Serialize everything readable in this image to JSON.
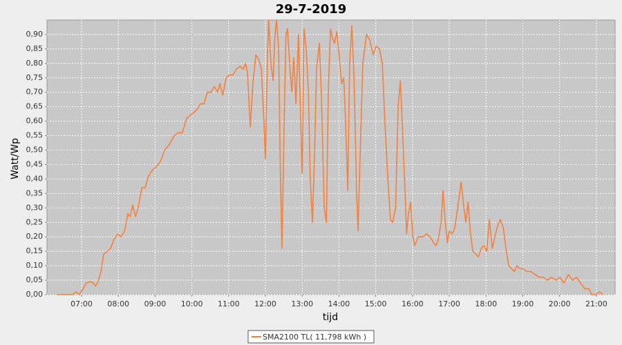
{
  "chart_data": {
    "type": "line",
    "title": "29-7-2019",
    "x_label": "tijd",
    "y_label": "Watt/Wp",
    "xlim": [
      6.06,
      21.51
    ],
    "ylim": [
      0,
      0.95
    ],
    "xticks": [
      {
        "value": 7,
        "label": "07:00"
      },
      {
        "value": 8,
        "label": "08:00"
      },
      {
        "value": 9,
        "label": "09:00"
      },
      {
        "value": 10,
        "label": "10:00"
      },
      {
        "value": 11,
        "label": "11:00"
      },
      {
        "value": 12,
        "label": "12:00"
      },
      {
        "value": 13,
        "label": "13:00"
      },
      {
        "value": 14,
        "label": "14:00"
      },
      {
        "value": 15,
        "label": "15:00"
      },
      {
        "value": 16,
        "label": "16:00"
      },
      {
        "value": 17,
        "label": "17:00"
      },
      {
        "value": 18,
        "label": "18:00"
      },
      {
        "value": 19,
        "label": "19:00"
      },
      {
        "value": 20,
        "label": "20:00"
      },
      {
        "value": 21,
        "label": "21:00"
      }
    ],
    "yticks": [
      {
        "value": 0,
        "label": "0,00"
      },
      {
        "value": 0.05,
        "label": "0,05"
      },
      {
        "value": 0.1,
        "label": "0,10"
      },
      {
        "value": 0.15,
        "label": "0,15"
      },
      {
        "value": 0.2,
        "label": "0,20"
      },
      {
        "value": 0.25,
        "label": "0,25"
      },
      {
        "value": 0.3,
        "label": "0,30"
      },
      {
        "value": 0.35,
        "label": "0,35"
      },
      {
        "value": 0.4,
        "label": "0,40"
      },
      {
        "value": 0.45,
        "label": "0,45"
      },
      {
        "value": 0.5,
        "label": "0,50"
      },
      {
        "value": 0.55,
        "label": "0,55"
      },
      {
        "value": 0.6,
        "label": "0,60"
      },
      {
        "value": 0.65,
        "label": "0,65"
      },
      {
        "value": 0.7,
        "label": "0,70"
      },
      {
        "value": 0.75,
        "label": "0,75"
      },
      {
        "value": 0.8,
        "label": "0,80"
      },
      {
        "value": 0.85,
        "label": "0,85"
      },
      {
        "value": 0.9,
        "label": "0,90"
      }
    ],
    "grid": true,
    "x": [
      6.32,
      6.76,
      6.85,
      6.94,
      7.04,
      7.13,
      7.23,
      7.32,
      7.38,
      7.45,
      7.53,
      7.6,
      7.7,
      7.79,
      7.88,
      7.98,
      8.07,
      8.17,
      8.26,
      8.32,
      8.39,
      8.47,
      8.54,
      8.64,
      8.73,
      8.82,
      8.92,
      9.01,
      9.14,
      9.26,
      9.39,
      9.52,
      9.63,
      9.74,
      9.86,
      9.95,
      10.05,
      10.14,
      10.23,
      10.33,
      10.42,
      10.52,
      10.61,
      10.7,
      10.76,
      10.84,
      10.93,
      11.02,
      11.12,
      11.21,
      11.31,
      11.4,
      11.46,
      11.51,
      11.59,
      11.66,
      11.74,
      11.83,
      11.89,
      11.96,
      12.0,
      12.06,
      12.09,
      12.15,
      12.21,
      12.26,
      12.3,
      12.36,
      12.41,
      12.45,
      12.51,
      12.56,
      12.6,
      12.66,
      12.72,
      12.77,
      12.83,
      12.9,
      12.94,
      13.0,
      13.05,
      13.11,
      13.17,
      13.22,
      13.28,
      13.34,
      13.39,
      13.47,
      13.52,
      13.6,
      13.66,
      13.71,
      13.77,
      13.82,
      13.88,
      13.94,
      13.99,
      14.07,
      14.13,
      14.18,
      14.24,
      14.29,
      14.35,
      14.41,
      14.48,
      14.52,
      14.58,
      14.65,
      14.75,
      14.84,
      14.93,
      15.01,
      15.1,
      15.18,
      15.25,
      15.33,
      15.4,
      15.46,
      15.54,
      15.61,
      15.67,
      15.72,
      15.8,
      15.84,
      15.89,
      15.95,
      16.01,
      16.06,
      16.16,
      16.29,
      16.38,
      16.48,
      16.57,
      16.64,
      16.7,
      16.78,
      16.83,
      16.89,
      16.95,
      17.0,
      17.08,
      17.15,
      17.25,
      17.32,
      17.4,
      17.45,
      17.51,
      17.57,
      17.64,
      17.72,
      17.79,
      17.87,
      17.94,
      18.02,
      18.09,
      18.17,
      18.24,
      18.32,
      18.39,
      18.47,
      18.54,
      18.62,
      18.69,
      18.77,
      18.84,
      18.92,
      18.99,
      19.11,
      19.22,
      19.33,
      19.45,
      19.56,
      19.67,
      19.78,
      19.9,
      20.01,
      20.12,
      20.24,
      20.35,
      20.46,
      20.57,
      20.69,
      20.8,
      20.87,
      20.99,
      21.08,
      21.18
    ],
    "series": [
      {
        "name": "SMA2100 TL( 11,798 kWh )",
        "color": "#f5803e",
        "values": [
          0,
          0,
          0.01,
          0,
          0.02,
          0.04,
          0.045,
          0.04,
          0.03,
          0.045,
          0.08,
          0.14,
          0.15,
          0.16,
          0.19,
          0.21,
          0.2,
          0.22,
          0.28,
          0.27,
          0.31,
          0.27,
          0.3,
          0.37,
          0.37,
          0.41,
          0.43,
          0.44,
          0.46,
          0.5,
          0.52,
          0.55,
          0.56,
          0.56,
          0.61,
          0.62,
          0.63,
          0.64,
          0.66,
          0.66,
          0.7,
          0.7,
          0.72,
          0.7,
          0.73,
          0.69,
          0.75,
          0.76,
          0.76,
          0.78,
          0.79,
          0.78,
          0.8,
          0.77,
          0.58,
          0.73,
          0.83,
          0.81,
          0.78,
          0.6,
          0.47,
          0.85,
          0.95,
          0.8,
          0.74,
          0.9,
          0.95,
          0.85,
          0.4,
          0.16,
          0.6,
          0.9,
          0.92,
          0.8,
          0.7,
          0.82,
          0.66,
          0.9,
          0.7,
          0.42,
          0.92,
          0.85,
          0.7,
          0.4,
          0.25,
          0.5,
          0.78,
          0.87,
          0.7,
          0.3,
          0.25,
          0.7,
          0.92,
          0.89,
          0.87,
          0.91,
          0.85,
          0.73,
          0.75,
          0.6,
          0.36,
          0.8,
          0.93,
          0.75,
          0.35,
          0.22,
          0.5,
          0.8,
          0.9,
          0.88,
          0.83,
          0.86,
          0.85,
          0.8,
          0.6,
          0.4,
          0.26,
          0.25,
          0.3,
          0.65,
          0.74,
          0.6,
          0.35,
          0.21,
          0.28,
          0.32,
          0.2,
          0.17,
          0.2,
          0.2,
          0.21,
          0.2,
          0.18,
          0.17,
          0.19,
          0.25,
          0.36,
          0.25,
          0.18,
          0.22,
          0.21,
          0.23,
          0.32,
          0.39,
          0.3,
          0.25,
          0.32,
          0.22,
          0.15,
          0.14,
          0.13,
          0.16,
          0.17,
          0.15,
          0.26,
          0.16,
          0.2,
          0.24,
          0.26,
          0.23,
          0.16,
          0.1,
          0.09,
          0.08,
          0.1,
          0.09,
          0.09,
          0.08,
          0.08,
          0.07,
          0.06,
          0.06,
          0.05,
          0.06,
          0.05,
          0.06,
          0.04,
          0.07,
          0.05,
          0.06,
          0.04,
          0.02,
          0.02,
          0,
          0,
          0.01,
          0
        ]
      }
    ]
  }
}
